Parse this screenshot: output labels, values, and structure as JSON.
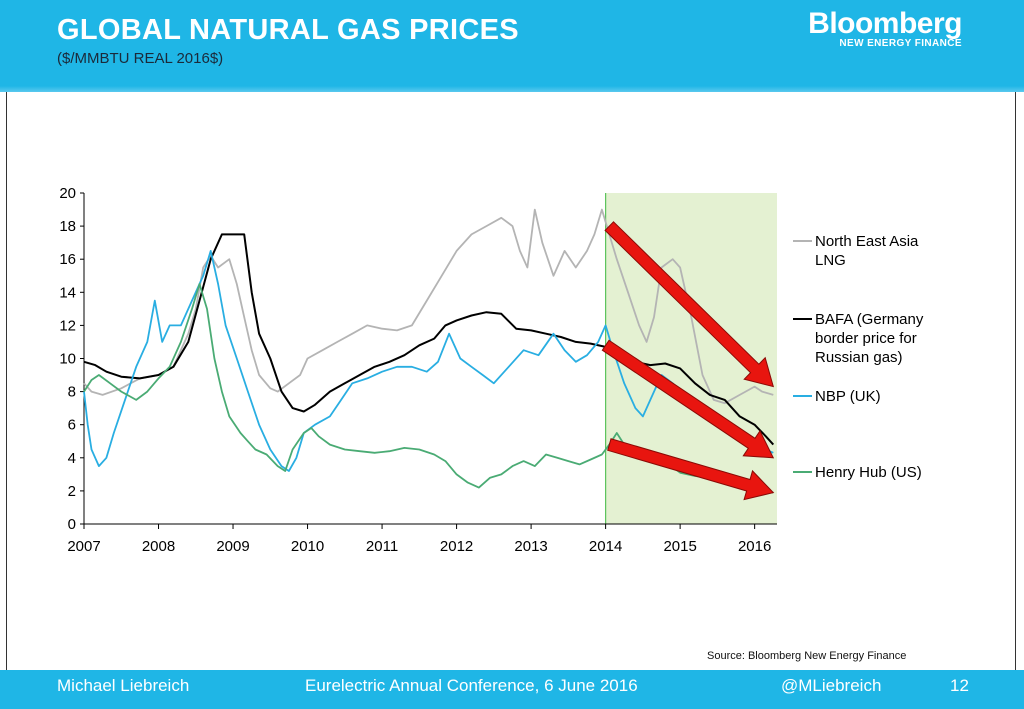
{
  "slide": {
    "title": "GLOBAL NATURAL GAS PRICES",
    "subtitle": "($/MMBTU REAL 2016$)",
    "brand_name": "Bloomberg",
    "brand_sub": "NEW ENERGY FINANCE",
    "source": "Source:  Bloomberg New Energy Finance",
    "footer": {
      "author": "Michael Liebreich",
      "event": "Eurelectric Annual Conference, 6 June 2016",
      "handle": "@MLiebreich",
      "page": "12"
    },
    "colors": {
      "header": "#1fb6e6",
      "highlight": "#e4f1d2",
      "arrow": "#e8150f"
    }
  },
  "chart_data": {
    "type": "line",
    "xlim": [
      2007,
      2016.3
    ],
    "ylim": [
      0,
      20
    ],
    "xticks": [
      "2007",
      "2008",
      "2009",
      "2010",
      "2011",
      "2012",
      "2013",
      "2014",
      "2015",
      "2016"
    ],
    "yticks": [
      "0",
      "2",
      "4",
      "6",
      "8",
      "10",
      "12",
      "14",
      "16",
      "18",
      "20"
    ],
    "highlight_range": [
      2014,
      2016.3
    ],
    "legend_position": "right",
    "series": [
      {
        "name": "North East Asia LNG",
        "color": "#b4b4b4",
        "points": [
          [
            2007.0,
            8.5
          ],
          [
            2007.1,
            8.0
          ],
          [
            2007.25,
            7.8
          ],
          [
            2007.5,
            8.2
          ],
          [
            2007.75,
            8.8
          ],
          [
            2008.0,
            9.0
          ],
          [
            2008.2,
            9.5
          ],
          [
            2008.4,
            11.5
          ],
          [
            2008.5,
            13.0
          ],
          [
            2008.6,
            15.5
          ],
          [
            2008.7,
            16.2
          ],
          [
            2008.8,
            15.5
          ],
          [
            2008.95,
            16.0
          ],
          [
            2009.05,
            14.5
          ],
          [
            2009.15,
            12.5
          ],
          [
            2009.25,
            10.5
          ],
          [
            2009.35,
            9.0
          ],
          [
            2009.5,
            8.2
          ],
          [
            2009.6,
            8.0
          ],
          [
            2009.75,
            8.5
          ],
          [
            2009.9,
            9.0
          ],
          [
            2010.0,
            10.0
          ],
          [
            2010.2,
            10.5
          ],
          [
            2010.4,
            11.0
          ],
          [
            2010.6,
            11.5
          ],
          [
            2010.8,
            12.0
          ],
          [
            2011.0,
            11.8
          ],
          [
            2011.2,
            11.7
          ],
          [
            2011.4,
            12.0
          ],
          [
            2011.6,
            13.5
          ],
          [
            2011.8,
            15.0
          ],
          [
            2012.0,
            16.5
          ],
          [
            2012.2,
            17.5
          ],
          [
            2012.4,
            18.0
          ],
          [
            2012.6,
            18.5
          ],
          [
            2012.75,
            18.0
          ],
          [
            2012.85,
            16.5
          ],
          [
            2012.95,
            15.5
          ],
          [
            2013.05,
            19.0
          ],
          [
            2013.15,
            17.0
          ],
          [
            2013.3,
            15.0
          ],
          [
            2013.45,
            16.5
          ],
          [
            2013.6,
            15.5
          ],
          [
            2013.75,
            16.5
          ],
          [
            2013.85,
            17.5
          ],
          [
            2013.95,
            19.0
          ],
          [
            2014.05,
            17.5
          ],
          [
            2014.15,
            16.0
          ],
          [
            2014.3,
            14.0
          ],
          [
            2014.45,
            12.0
          ],
          [
            2014.55,
            11.0
          ],
          [
            2014.65,
            12.5
          ],
          [
            2014.75,
            15.5
          ],
          [
            2014.9,
            16.0
          ],
          [
            2015.0,
            15.5
          ],
          [
            2015.15,
            12.5
          ],
          [
            2015.3,
            9.0
          ],
          [
            2015.45,
            7.5
          ],
          [
            2015.6,
            7.3
          ],
          [
            2015.8,
            7.8
          ],
          [
            2016.0,
            8.3
          ],
          [
            2016.1,
            8.0
          ],
          [
            2016.25,
            7.8
          ]
        ]
      },
      {
        "name": "BAFA (Germany border price for Russian gas)",
        "color": "#000000",
        "points": [
          [
            2007.0,
            9.8
          ],
          [
            2007.15,
            9.6
          ],
          [
            2007.3,
            9.2
          ],
          [
            2007.5,
            8.9
          ],
          [
            2007.75,
            8.8
          ],
          [
            2008.0,
            9.0
          ],
          [
            2008.2,
            9.5
          ],
          [
            2008.4,
            11.0
          ],
          [
            2008.55,
            13.5
          ],
          [
            2008.7,
            16.0
          ],
          [
            2008.85,
            17.5
          ],
          [
            2009.15,
            17.5
          ],
          [
            2009.25,
            14.0
          ],
          [
            2009.35,
            11.5
          ],
          [
            2009.5,
            10.0
          ],
          [
            2009.65,
            8.0
          ],
          [
            2009.8,
            7.0
          ],
          [
            2009.95,
            6.8
          ],
          [
            2010.1,
            7.2
          ],
          [
            2010.3,
            8.0
          ],
          [
            2010.5,
            8.5
          ],
          [
            2010.7,
            9.0
          ],
          [
            2010.9,
            9.5
          ],
          [
            2011.1,
            9.8
          ],
          [
            2011.3,
            10.2
          ],
          [
            2011.5,
            10.8
          ],
          [
            2011.7,
            11.2
          ],
          [
            2011.85,
            12.0
          ],
          [
            2012.0,
            12.3
          ],
          [
            2012.2,
            12.6
          ],
          [
            2012.4,
            12.8
          ],
          [
            2012.6,
            12.7
          ],
          [
            2012.8,
            11.8
          ],
          [
            2013.0,
            11.7
          ],
          [
            2013.2,
            11.5
          ],
          [
            2013.4,
            11.3
          ],
          [
            2013.6,
            11.0
          ],
          [
            2013.8,
            10.9
          ],
          [
            2014.0,
            10.7
          ],
          [
            2014.2,
            10.2
          ],
          [
            2014.4,
            9.8
          ],
          [
            2014.6,
            9.6
          ],
          [
            2014.8,
            9.7
          ],
          [
            2015.0,
            9.4
          ],
          [
            2015.2,
            8.5
          ],
          [
            2015.4,
            7.8
          ],
          [
            2015.6,
            7.5
          ],
          [
            2015.8,
            6.5
          ],
          [
            2016.0,
            6.0
          ],
          [
            2016.15,
            5.3
          ],
          [
            2016.25,
            4.8
          ]
        ]
      },
      {
        "name": "NBP (UK)",
        "color": "#29aee2",
        "points": [
          [
            2007.0,
            8.0
          ],
          [
            2007.05,
            6.0
          ],
          [
            2007.1,
            4.5
          ],
          [
            2007.2,
            3.5
          ],
          [
            2007.3,
            4.0
          ],
          [
            2007.4,
            5.5
          ],
          [
            2007.55,
            7.5
          ],
          [
            2007.7,
            9.5
          ],
          [
            2007.85,
            11.0
          ],
          [
            2007.95,
            13.5
          ],
          [
            2008.05,
            11.0
          ],
          [
            2008.15,
            12.0
          ],
          [
            2008.3,
            12.0
          ],
          [
            2008.45,
            13.5
          ],
          [
            2008.6,
            15.0
          ],
          [
            2008.7,
            16.5
          ],
          [
            2008.8,
            14.5
          ],
          [
            2008.9,
            12.0
          ],
          [
            2009.05,
            10.0
          ],
          [
            2009.2,
            8.0
          ],
          [
            2009.35,
            6.0
          ],
          [
            2009.5,
            4.5
          ],
          [
            2009.65,
            3.5
          ],
          [
            2009.75,
            3.2
          ],
          [
            2009.85,
            4.0
          ],
          [
            2009.95,
            5.5
          ],
          [
            2010.1,
            6.0
          ],
          [
            2010.3,
            6.5
          ],
          [
            2010.45,
            7.5
          ],
          [
            2010.6,
            8.5
          ],
          [
            2010.8,
            8.8
          ],
          [
            2011.0,
            9.2
          ],
          [
            2011.2,
            9.5
          ],
          [
            2011.4,
            9.5
          ],
          [
            2011.6,
            9.2
          ],
          [
            2011.75,
            9.8
          ],
          [
            2011.9,
            11.5
          ],
          [
            2012.05,
            10.0
          ],
          [
            2012.2,
            9.5
          ],
          [
            2012.35,
            9.0
          ],
          [
            2012.5,
            8.5
          ],
          [
            2012.7,
            9.5
          ],
          [
            2012.9,
            10.5
          ],
          [
            2013.1,
            10.2
          ],
          [
            2013.3,
            11.5
          ],
          [
            2013.45,
            10.5
          ],
          [
            2013.6,
            9.8
          ],
          [
            2013.75,
            10.2
          ],
          [
            2013.9,
            11.0
          ],
          [
            2014.0,
            12.0
          ],
          [
            2014.1,
            10.5
          ],
          [
            2014.25,
            8.5
          ],
          [
            2014.4,
            7.0
          ],
          [
            2014.5,
            6.5
          ],
          [
            2014.6,
            7.5
          ],
          [
            2014.75,
            9.0
          ],
          [
            2014.9,
            8.5
          ],
          [
            2015.05,
            7.8
          ],
          [
            2015.2,
            7.0
          ],
          [
            2015.4,
            6.5
          ],
          [
            2015.6,
            6.0
          ],
          [
            2015.8,
            5.5
          ],
          [
            2016.0,
            5.0
          ],
          [
            2016.15,
            4.5
          ],
          [
            2016.25,
            4.3
          ]
        ]
      },
      {
        "name": "Henry Hub (US)",
        "color": "#4aab74",
        "points": [
          [
            2007.0,
            8.0
          ],
          [
            2007.1,
            8.7
          ],
          [
            2007.2,
            9.0
          ],
          [
            2007.35,
            8.5
          ],
          [
            2007.5,
            8.0
          ],
          [
            2007.7,
            7.5
          ],
          [
            2007.85,
            8.0
          ],
          [
            2008.0,
            8.8
          ],
          [
            2008.15,
            9.5
          ],
          [
            2008.3,
            11.0
          ],
          [
            2008.45,
            13.0
          ],
          [
            2008.55,
            14.5
          ],
          [
            2008.65,
            13.0
          ],
          [
            2008.75,
            10.0
          ],
          [
            2008.85,
            8.0
          ],
          [
            2008.95,
            6.5
          ],
          [
            2009.1,
            5.5
          ],
          [
            2009.2,
            5.0
          ],
          [
            2009.3,
            4.5
          ],
          [
            2009.45,
            4.2
          ],
          [
            2009.6,
            3.5
          ],
          [
            2009.7,
            3.2
          ],
          [
            2009.8,
            4.5
          ],
          [
            2009.95,
            5.5
          ],
          [
            2010.05,
            5.8
          ],
          [
            2010.15,
            5.3
          ],
          [
            2010.3,
            4.8
          ],
          [
            2010.5,
            4.5
          ],
          [
            2010.7,
            4.4
          ],
          [
            2010.9,
            4.3
          ],
          [
            2011.1,
            4.4
          ],
          [
            2011.3,
            4.6
          ],
          [
            2011.5,
            4.5
          ],
          [
            2011.7,
            4.2
          ],
          [
            2011.85,
            3.8
          ],
          [
            2012.0,
            3.0
          ],
          [
            2012.15,
            2.5
          ],
          [
            2012.3,
            2.2
          ],
          [
            2012.45,
            2.8
          ],
          [
            2012.6,
            3.0
          ],
          [
            2012.75,
            3.5
          ],
          [
            2012.9,
            3.8
          ],
          [
            2013.05,
            3.5
          ],
          [
            2013.2,
            4.2
          ],
          [
            2013.35,
            4.0
          ],
          [
            2013.5,
            3.8
          ],
          [
            2013.65,
            3.6
          ],
          [
            2013.8,
            3.9
          ],
          [
            2013.95,
            4.2
          ],
          [
            2014.05,
            4.8
          ],
          [
            2014.15,
            5.5
          ],
          [
            2014.25,
            4.8
          ],
          [
            2014.4,
            4.5
          ],
          [
            2014.55,
            4.2
          ],
          [
            2014.7,
            3.9
          ],
          [
            2014.85,
            3.6
          ],
          [
            2015.0,
            3.1
          ],
          [
            2015.2,
            2.9
          ],
          [
            2015.4,
            2.8
          ],
          [
            2015.6,
            2.9
          ],
          [
            2015.8,
            2.4
          ],
          [
            2016.0,
            2.2
          ],
          [
            2016.15,
            2.0
          ],
          [
            2016.25,
            1.9
          ]
        ]
      }
    ],
    "arrows": [
      {
        "from": [
          2014.05,
          18.0
        ],
        "to": [
          2016.25,
          8.3
        ]
      },
      {
        "from": [
          2014.0,
          10.8
        ],
        "to": [
          2016.25,
          4.0
        ]
      },
      {
        "from": [
          2014.05,
          4.8
        ],
        "to": [
          2016.25,
          1.9
        ]
      }
    ]
  }
}
